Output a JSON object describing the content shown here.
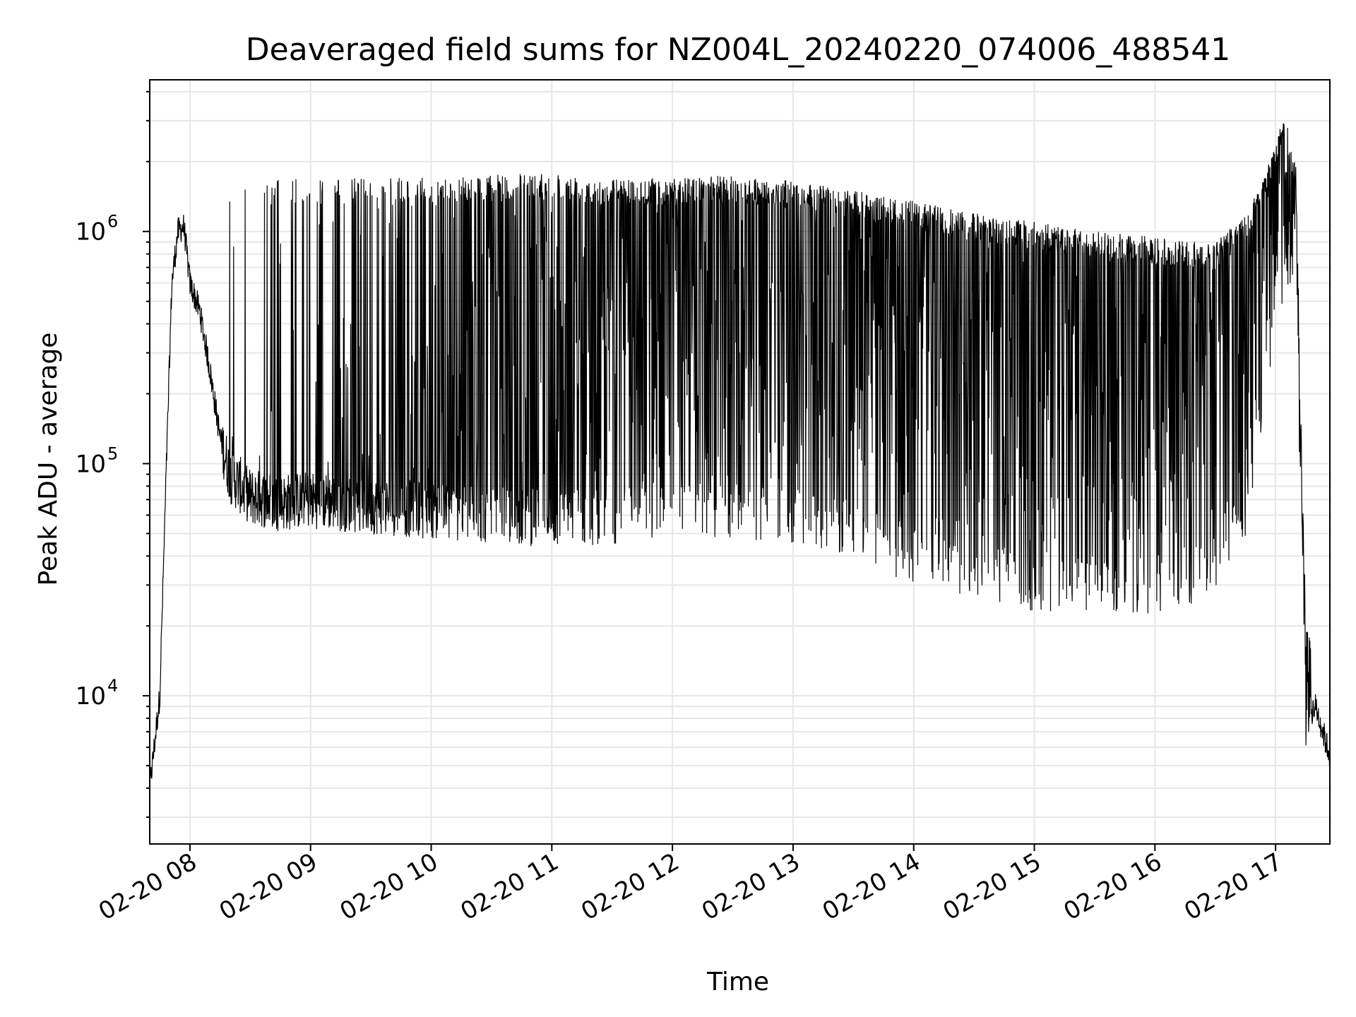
{
  "chart_data": {
    "type": "line",
    "title": "Deaveraged field sums for NZ004L_20240220_074006_488541",
    "xlabel": "Time",
    "ylabel": "Peak ADU - average",
    "y_scale": "log",
    "ylim": [
      2300,
      4500000
    ],
    "xlim": [
      "02-20 07:40",
      "02-20 17:27"
    ],
    "grid": true,
    "line_color": "#000000",
    "x_tick_labels": [
      "02-20 08",
      "02-20 09",
      "02-20 10",
      "02-20 11",
      "02-20 12",
      "02-20 13",
      "02-20 14",
      "02-20 15",
      "02-20 16",
      "02-20 17"
    ],
    "y_ticks": [
      {
        "value": 10000,
        "base": "10",
        "exp": "4"
      },
      {
        "value": 100000,
        "base": "10",
        "exp": "5"
      },
      {
        "value": 1000000,
        "base": "10",
        "exp": "6"
      }
    ],
    "series": [
      {
        "x": [
          "02-20 07:40",
          "02-20 07:45",
          "02-20 07:48",
          "02-20 07:51",
          "02-20 07:54",
          "02-20 07:57",
          "02-20 08:00",
          "02-20 08:05",
          "02-20 08:10",
          "02-20 08:15",
          "02-20 08:20",
          "02-20 08:30",
          "02-20 08:45",
          "02-20 09:00",
          "02-20 09:30",
          "02-20 10:00",
          "02-20 10:30",
          "02-20 11:00",
          "02-20 11:30",
          "02-20 12:00",
          "02-20 12:30",
          "02-20 13:00",
          "02-20 13:30",
          "02-20 14:00",
          "02-20 14:30",
          "02-20 15:00",
          "02-20 15:30",
          "02-20 16:00",
          "02-20 16:30",
          "02-20 16:45",
          "02-20 16:55",
          "02-20 17:00",
          "02-20 17:05",
          "02-20 17:10",
          "02-20 17:15",
          "02-20 17:20",
          "02-20 17:27"
        ],
        "baseline": [
          4000,
          10000,
          80000,
          600000,
          1000000,
          1050000,
          600000,
          450000,
          250000,
          130000,
          90000,
          72000,
          68000,
          70000,
          66000,
          63000,
          60000,
          58000,
          60000,
          63000,
          62000,
          60000,
          52000,
          40000,
          35000,
          30000,
          30000,
          30000,
          35000,
          60000,
          250000,
          500000,
          700000,
          800000,
          8000,
          9000,
          5500
        ],
        "peak": [
          4000,
          10000,
          80000,
          600000,
          1100000,
          1150000,
          700000,
          500000,
          300000,
          160000,
          1650000,
          1650000,
          1700000,
          1700000,
          1700000,
          1700000,
          1750000,
          1800000,
          1700000,
          1700000,
          1750000,
          1650000,
          1500000,
          1350000,
          1200000,
          1100000,
          1000000,
          950000,
          900000,
          1200000,
          1800000,
          2500000,
          3200000,
          2000000,
          20000,
          15000,
          5500
        ]
      }
    ]
  }
}
